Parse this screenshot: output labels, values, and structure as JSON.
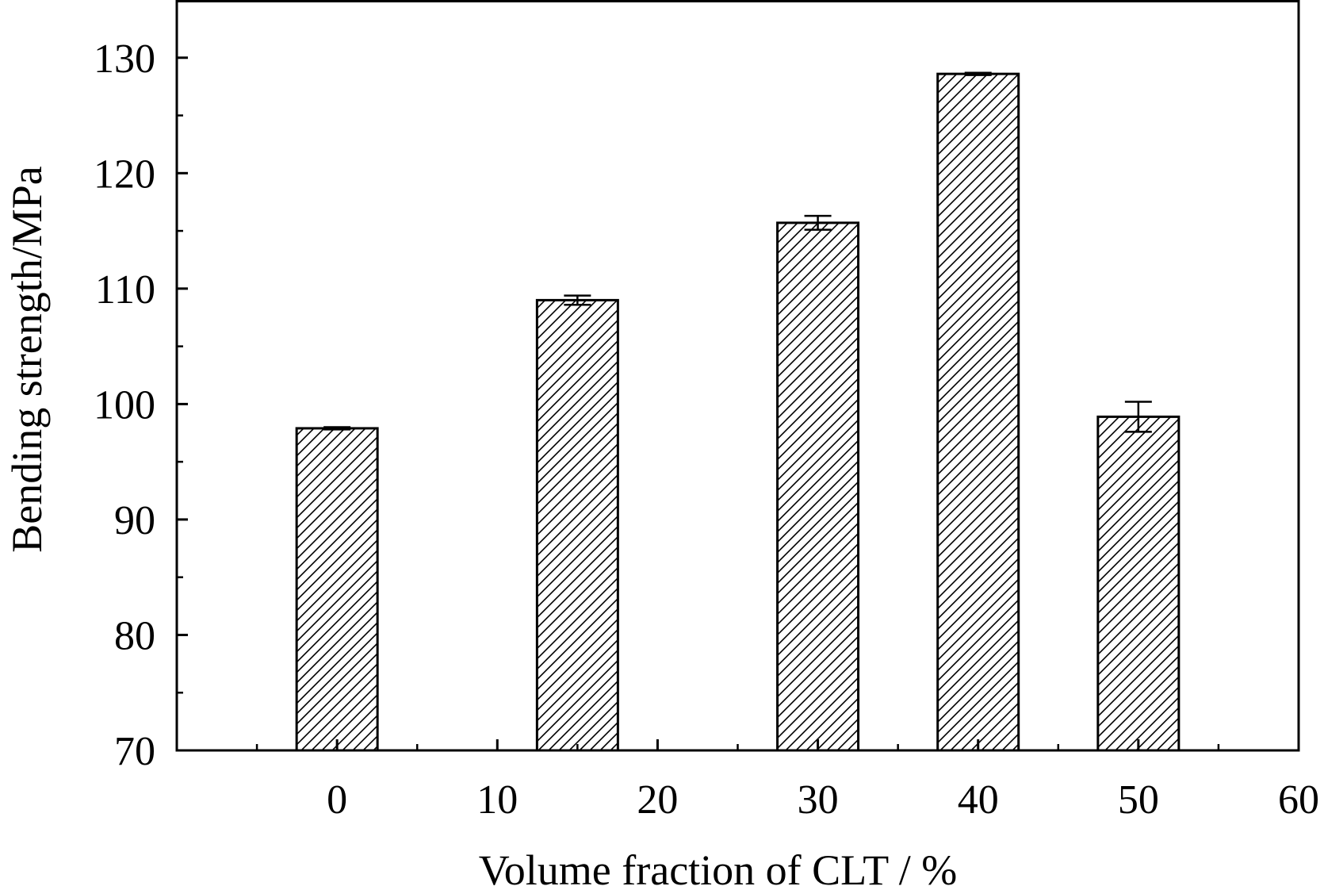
{
  "chart_data": {
    "type": "bar",
    "xlabel": "Volume fraction of CLT / %",
    "ylabel": "Bending strength/MPa",
    "xlim": [
      -10,
      60
    ],
    "ylim": [
      70,
      135
    ],
    "xticks": [
      0,
      10,
      20,
      30,
      40,
      50,
      60
    ],
    "yticks": [
      70,
      80,
      90,
      100,
      110,
      120,
      130
    ],
    "bar_positions": [
      0,
      15,
      30,
      40,
      50
    ],
    "values": [
      97.9,
      109.0,
      115.7,
      128.6,
      98.9
    ],
    "errors": [
      0.1,
      0.4,
      0.6,
      0.1,
      1.3
    ],
    "fill_pattern": "diagonal-hatch",
    "grid": false,
    "legend": "none"
  }
}
